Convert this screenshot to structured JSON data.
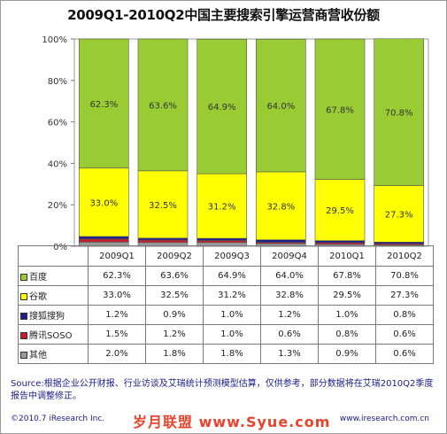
{
  "title": "2009Q1-2010Q2中国主要搜索引擎运营商营收份额",
  "chart_data": {
    "type": "bar",
    "stacked": true,
    "categories": [
      "2009Q1",
      "2009Q2",
      "2009Q3",
      "2009Q4",
      "2010Q1",
      "2010Q2"
    ],
    "ylim": [
      0,
      100
    ],
    "yticks": [
      "0%",
      "20%",
      "40%",
      "60%",
      "80%",
      "100%"
    ],
    "series": [
      {
        "name": "其他",
        "color": "#9a9a9a",
        "values": [
          2.0,
          1.8,
          1.8,
          1.3,
          0.9,
          0.6
        ],
        "labels": [
          "2.0%",
          "1.8%",
          "1.8%",
          "1.3%",
          "0.9%",
          "0.6%"
        ]
      },
      {
        "name": "腾讯SOSO",
        "color": "#c0202c",
        "values": [
          1.5,
          1.2,
          1.0,
          0.6,
          0.8,
          0.6
        ],
        "labels": [
          "1.5%",
          "1.2%",
          "1.0%",
          "0.6%",
          "0.8%",
          "0.6%"
        ]
      },
      {
        "name": "搜狐搜狗",
        "color": "#1e1e8c",
        "values": [
          1.2,
          0.9,
          1.0,
          1.2,
          1.0,
          0.8
        ],
        "labels": [
          "1.2%",
          "0.9%",
          "1.0%",
          "1.2%",
          "1.0%",
          "0.8%"
        ]
      },
      {
        "name": "谷歌",
        "color": "#ffff00",
        "values": [
          33.0,
          32.5,
          31.2,
          32.8,
          29.5,
          27.3
        ],
        "labels": [
          "33.0%",
          "32.5%",
          "31.2%",
          "32.8%",
          "29.5%",
          "27.3%"
        ]
      },
      {
        "name": "百度",
        "color": "#99cc33",
        "values": [
          62.3,
          63.6,
          64.9,
          64.0,
          67.8,
          70.8
        ],
        "labels": [
          "62.3%",
          "63.6%",
          "64.9%",
          "64.0%",
          "67.8%",
          "70.8%"
        ]
      }
    ],
    "table_rows": [
      {
        "name": "百度",
        "color": "#99cc33",
        "values": [
          "62.3%",
          "63.6%",
          "64.9%",
          "64.0%",
          "67.8%",
          "70.8%"
        ]
      },
      {
        "name": "谷歌",
        "color": "#ffff00",
        "values": [
          "33.0%",
          "32.5%",
          "31.2%",
          "32.8%",
          "29.5%",
          "27.3%"
        ]
      },
      {
        "name": "搜狐搜狗",
        "color": "#1e1e8c",
        "values": [
          "1.2%",
          "0.9%",
          "1.0%",
          "1.2%",
          "1.0%",
          "0.8%"
        ]
      },
      {
        "name": "腾讯SOSO",
        "color": "#c0202c",
        "values": [
          "1.5%",
          "1.2%",
          "1.0%",
          "0.6%",
          "0.8%",
          "0.6%"
        ]
      },
      {
        "name": "其他",
        "color": "#9a9a9a",
        "values": [
          "2.0%",
          "1.8%",
          "1.8%",
          "1.3%",
          "0.9%",
          "0.6%"
        ]
      }
    ]
  },
  "source_text": "Source:根据企业公开财报、行业访谈及艾瑞统计预测模型估算，仅供参考，部分数据将在艾瑞2010Q2季度报告中调整修正。",
  "copyright": "©2010.7 iResearch Inc.",
  "watermark": "岁月联盟 www.Syue.com",
  "website": "www.iresearch.com.cn"
}
